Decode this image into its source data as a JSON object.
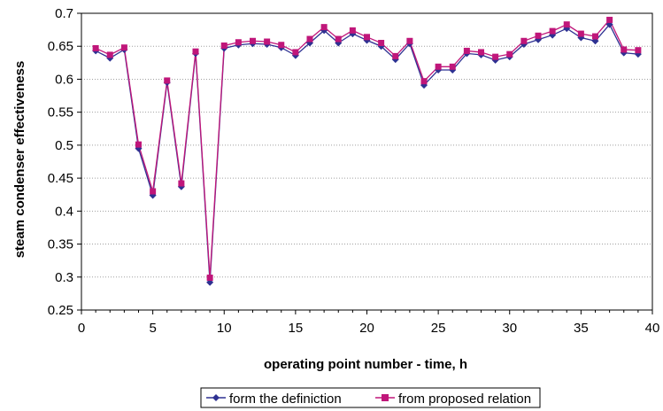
{
  "colors": {
    "series1": "#2e3192",
    "series2": "#c0167a",
    "grid": "#a0a0a0",
    "axis": "#000000"
  },
  "chart_data": {
    "type": "line",
    "title": "",
    "xlabel": "operating point number - time, h",
    "ylabel": "steam condenser effectiveness",
    "xlim": [
      0,
      40
    ],
    "ylim": [
      0.25,
      0.7
    ],
    "xticks": [
      0,
      5,
      10,
      15,
      20,
      25,
      30,
      35,
      40
    ],
    "yticks": [
      0.25,
      0.3,
      0.35,
      0.4,
      0.45,
      0.5,
      0.55,
      0.6,
      0.65,
      0.7
    ],
    "xtick_labels": [
      "0",
      "5",
      "10",
      "15",
      "20",
      "25",
      "30",
      "35",
      "40"
    ],
    "ytick_labels": [
      "0.25",
      "0.3",
      "0.35",
      "0.4",
      "0.45",
      "0.5",
      "0.55",
      "0.6",
      "0.65",
      "0.7"
    ],
    "grid": "horizontal-dotted",
    "legend_position": "bottom",
    "x": [
      1,
      2,
      3,
      4,
      5,
      6,
      7,
      8,
      9,
      10,
      11,
      12,
      13,
      14,
      15,
      16,
      17,
      18,
      19,
      20,
      21,
      22,
      23,
      24,
      25,
      26,
      27,
      28,
      29,
      30,
      31,
      32,
      33,
      34,
      35,
      36,
      37,
      38,
      39
    ],
    "series": [
      {
        "name": "form the definiction",
        "marker": "diamond",
        "values": [
          0.643,
          0.632,
          0.645,
          0.495,
          0.424,
          0.595,
          0.437,
          0.639,
          0.292,
          0.647,
          0.652,
          0.654,
          0.653,
          0.648,
          0.636,
          0.655,
          0.674,
          0.655,
          0.669,
          0.659,
          0.65,
          0.63,
          0.654,
          0.591,
          0.614,
          0.614,
          0.639,
          0.637,
          0.629,
          0.634,
          0.653,
          0.66,
          0.667,
          0.677,
          0.663,
          0.658,
          0.683,
          0.64,
          0.638
        ]
      },
      {
        "name": "from proposed relation",
        "marker": "square",
        "values": [
          0.647,
          0.637,
          0.648,
          0.501,
          0.43,
          0.598,
          0.442,
          0.642,
          0.299,
          0.651,
          0.656,
          0.658,
          0.657,
          0.652,
          0.641,
          0.661,
          0.679,
          0.661,
          0.674,
          0.664,
          0.655,
          0.635,
          0.658,
          0.597,
          0.619,
          0.619,
          0.643,
          0.641,
          0.634,
          0.638,
          0.658,
          0.666,
          0.673,
          0.683,
          0.669,
          0.665,
          0.69,
          0.645,
          0.644
        ]
      }
    ]
  }
}
